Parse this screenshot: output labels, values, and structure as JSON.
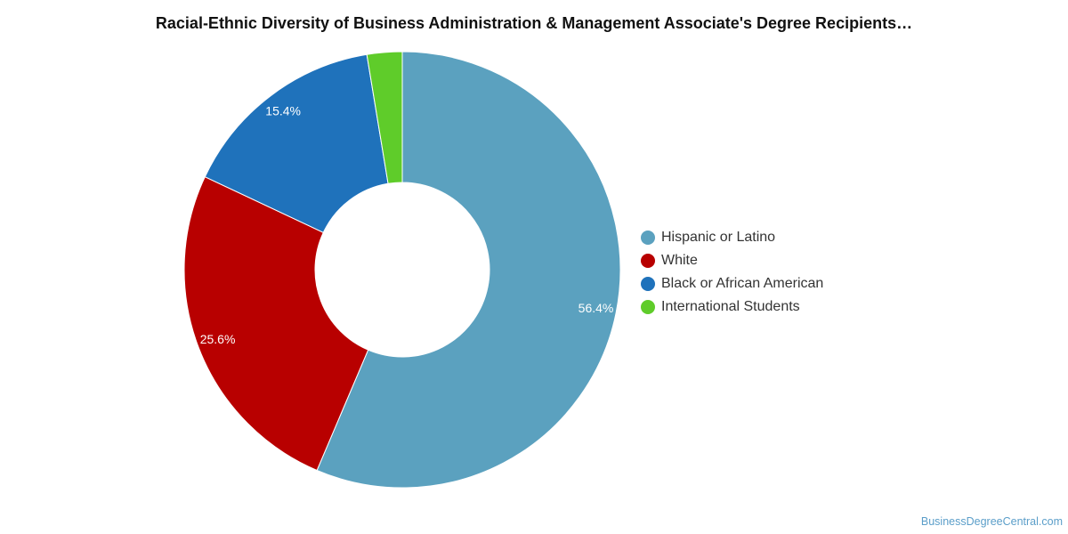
{
  "chart_data": {
    "type": "pie",
    "title": "Racial-Ethnic Diversity of Business Administration & Management Associate's Degree Recipients…",
    "legend_position": "right",
    "style": "donut",
    "series": [
      {
        "name": "Hispanic or Latino",
        "value": 56.4,
        "label": "56.4%",
        "color": "#5ba1bf"
      },
      {
        "name": "White",
        "value": 25.6,
        "label": "25.6%",
        "color": "#b80000"
      },
      {
        "name": "Black or African American",
        "value": 15.4,
        "label": "15.4%",
        "color": "#1f72bb"
      },
      {
        "name": "International Students",
        "value": 2.6,
        "label": "",
        "color": "#5fcc2a"
      }
    ]
  },
  "credit": "BusinessDegreeCentral.com"
}
